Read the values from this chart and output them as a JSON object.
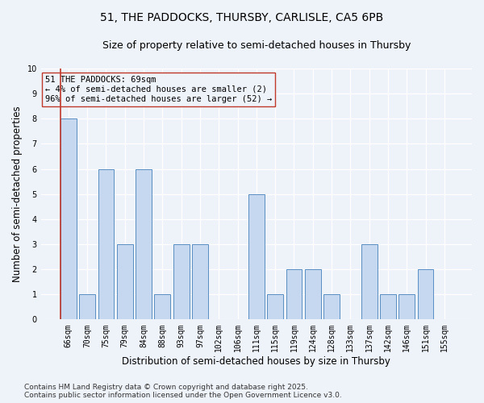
{
  "title_line1": "51, THE PADDOCKS, THURSBY, CARLISLE, CA5 6PB",
  "title_line2": "Size of property relative to semi-detached houses in Thursby",
  "xlabel": "Distribution of semi-detached houses by size in Thursby",
  "ylabel": "Number of semi-detached properties",
  "categories": [
    "66sqm",
    "70sqm",
    "75sqm",
    "79sqm",
    "84sqm",
    "88sqm",
    "93sqm",
    "97sqm",
    "102sqm",
    "106sqm",
    "111sqm",
    "115sqm",
    "119sqm",
    "124sqm",
    "128sqm",
    "133sqm",
    "137sqm",
    "142sqm",
    "146sqm",
    "151sqm",
    "155sqm"
  ],
  "values": [
    8,
    1,
    6,
    3,
    6,
    1,
    3,
    3,
    0,
    0,
    5,
    1,
    2,
    2,
    1,
    0,
    3,
    1,
    1,
    2,
    0
  ],
  "bar_color": "#c5d8f0",
  "bar_edge_color": "#5a8fc2",
  "highlight_index": 0,
  "highlight_color": "#c0392b",
  "ylim": [
    0,
    10
  ],
  "yticks": [
    0,
    1,
    2,
    3,
    4,
    5,
    6,
    7,
    8,
    9,
    10
  ],
  "annotation_text": "51 THE PADDOCKS: 69sqm\n← 4% of semi-detached houses are smaller (2)\n96% of semi-detached houses are larger (52) →",
  "footer_line1": "Contains HM Land Registry data © Crown copyright and database right 2025.",
  "footer_line2": "Contains public sector information licensed under the Open Government Licence v3.0.",
  "bg_color": "#eef2f9",
  "grid_color": "#ffffff",
  "title_fontsize": 10,
  "subtitle_fontsize": 9,
  "axis_label_fontsize": 8.5,
  "tick_fontsize": 7,
  "annotation_fontsize": 7.5,
  "footer_fontsize": 6.5
}
